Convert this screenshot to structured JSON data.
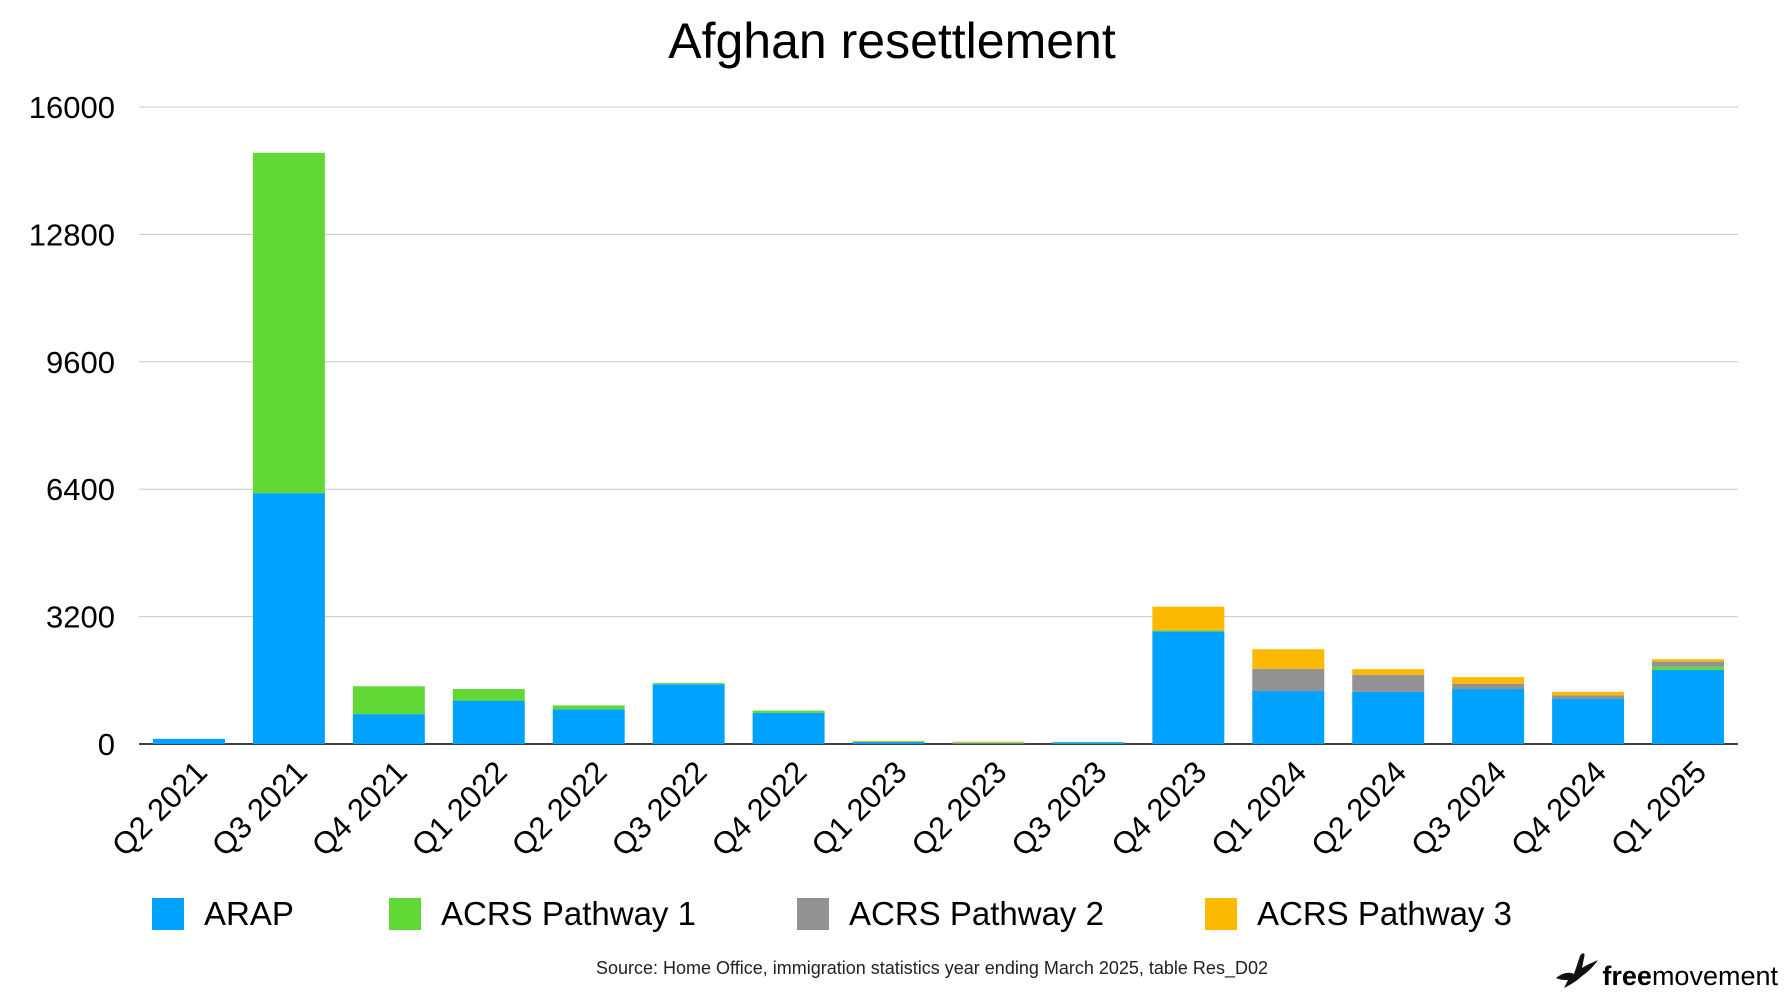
{
  "chart_data": {
    "type": "bar",
    "stacked": true,
    "title": "Afghan resettlement",
    "categories": [
      "Q2 2021",
      "Q3 2021",
      "Q4 2021",
      "Q1 2022",
      "Q2 2022",
      "Q3 2022",
      "Q4 2022",
      "Q1 2023",
      "Q2 2023",
      "Q3 2023",
      "Q4 2023",
      "Q1 2024",
      "Q2 2024",
      "Q3 2024",
      "Q4 2024",
      "Q1 2025"
    ],
    "series": [
      {
        "name": "ARAP",
        "color": "#00a2ff",
        "values": [
          130,
          6300,
          750,
          1090,
          870,
          1500,
          780,
          50,
          20,
          40,
          2830,
          1330,
          1310,
          1380,
          1140,
          1860
        ]
      },
      {
        "name": "ACRS Pathway 1",
        "color": "#61d836",
        "values": [
          0,
          8550,
          700,
          290,
          100,
          30,
          60,
          10,
          10,
          10,
          20,
          0,
          0,
          0,
          0,
          80
        ]
      },
      {
        "name": "ACRS Pathway 2",
        "color": "#929292",
        "values": [
          0,
          0,
          0,
          0,
          0,
          0,
          0,
          0,
          0,
          0,
          0,
          560,
          430,
          130,
          80,
          130
        ]
      },
      {
        "name": "ACRS Pathway 3",
        "color": "#fbb900",
        "values": [
          0,
          0,
          0,
          0,
          0,
          0,
          0,
          20,
          30,
          0,
          600,
          490,
          140,
          170,
          90,
          60
        ]
      }
    ],
    "ylim": [
      0,
      16000
    ],
    "yticks": [
      "0",
      "3200",
      "6400",
      "9600",
      "12800",
      "16000"
    ],
    "grid": true,
    "legend_position": "bottom"
  },
  "source": "Source: Home Office, immigration statistics year ending March 2025, table Res_D02",
  "logo": {
    "bold": "free",
    "regular": "movement",
    "icon": "bird-icon"
  }
}
